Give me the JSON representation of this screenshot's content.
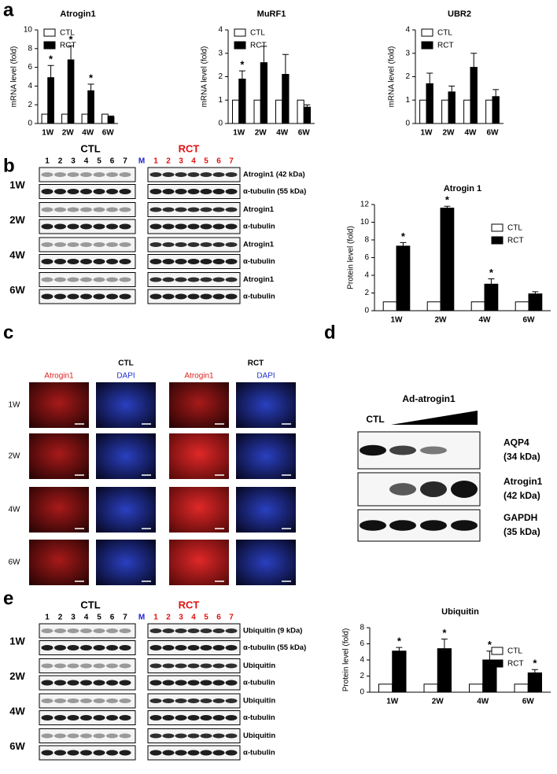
{
  "panel_labels": [
    "a",
    "b",
    "c",
    "d",
    "e"
  ],
  "chart_data": [
    {
      "type": "bar",
      "title": "Atrogin1",
      "ylabel": "mRNA level (fold)",
      "categories": [
        "1W",
        "2W",
        "4W",
        "6W"
      ],
      "ylim": [
        0,
        10
      ],
      "yticks": [
        0,
        2,
        4,
        6,
        8,
        10
      ],
      "legend": "upper-left",
      "series": [
        {
          "name": "CTL",
          "color": "#ffffff",
          "values": [
            1,
            1,
            1,
            1
          ]
        },
        {
          "name": "RCT",
          "color": "#000000",
          "values": [
            4.9,
            6.8,
            3.5,
            0.7
          ],
          "errors": [
            1.3,
            1.5,
            0.7,
            0.1
          ],
          "annotations": [
            "*",
            "*",
            "*",
            null
          ]
        }
      ]
    },
    {
      "type": "bar",
      "title": "MuRF1",
      "ylabel": "mRNA level (fold)",
      "categories": [
        "1W",
        "2W",
        "4W",
        "6W"
      ],
      "ylim": [
        0,
        4
      ],
      "yticks": [
        0,
        1,
        2,
        3,
        4
      ],
      "legend": "upper-left",
      "series": [
        {
          "name": "CTL",
          "color": "#ffffff",
          "values": [
            1,
            1,
            1,
            1
          ]
        },
        {
          "name": "RCT",
          "color": "#000000",
          "values": [
            1.9,
            2.6,
            2.1,
            0.7
          ],
          "errors": [
            0.35,
            0.7,
            0.85,
            0.1
          ],
          "annotations": [
            "*",
            null,
            null,
            null
          ]
        }
      ]
    },
    {
      "type": "bar",
      "title": "UBR2",
      "ylabel": "mRNA level (fold)",
      "categories": [
        "1W",
        "2W",
        "4W",
        "6W"
      ],
      "ylim": [
        0,
        4
      ],
      "yticks": [
        0,
        1,
        2,
        3,
        4
      ],
      "legend": "upper-left",
      "series": [
        {
          "name": "CTL",
          "color": "#ffffff",
          "values": [
            1,
            1,
            1,
            1
          ]
        },
        {
          "name": "RCT",
          "color": "#000000",
          "values": [
            1.7,
            1.35,
            2.4,
            1.15
          ],
          "errors": [
            0.45,
            0.25,
            0.6,
            0.3
          ]
        }
      ]
    },
    {
      "type": "bar",
      "title": "Atrogin 1",
      "ylabel": "Protein level (fold)",
      "categories": [
        "1W",
        "2W",
        "4W",
        "6W"
      ],
      "ylim": [
        0,
        12
      ],
      "yticks": [
        0,
        2,
        4,
        6,
        8,
        10,
        12
      ],
      "legend": "upper-right",
      "series": [
        {
          "name": "CTL",
          "color": "#ffffff",
          "values": [
            1,
            1,
            1,
            1
          ]
        },
        {
          "name": "RCT",
          "color": "#000000",
          "values": [
            7.3,
            11.6,
            3.0,
            1.9
          ],
          "errors": [
            0.4,
            0.2,
            0.6,
            0.25
          ],
          "annotations": [
            "*",
            "*",
            "*",
            null
          ]
        }
      ]
    },
    {
      "type": "bar",
      "title": "Ubiquitin",
      "ylabel": "Protein level (fold)",
      "categories": [
        "1W",
        "2W",
        "4W",
        "6W"
      ],
      "ylim": [
        0,
        8
      ],
      "yticks": [
        0,
        2,
        4,
        6,
        8
      ],
      "legend": "upper-right",
      "series": [
        {
          "name": "CTL",
          "color": "#ffffff",
          "values": [
            1,
            1,
            1,
            1
          ]
        },
        {
          "name": "RCT",
          "color": "#000000",
          "values": [
            5.1,
            5.4,
            4.0,
            2.4
          ],
          "errors": [
            0.45,
            1.2,
            1.1,
            0.4
          ],
          "annotations": [
            "*",
            "*",
            "*",
            "*"
          ]
        }
      ]
    }
  ],
  "blot_b": {
    "group_labels": [
      "CTL",
      "RCT"
    ],
    "lanes": [
      "1",
      "2",
      "3",
      "4",
      "5",
      "6",
      "7",
      "M",
      "1",
      "2",
      "3",
      "4",
      "5",
      "6",
      "7"
    ],
    "rows": [
      "1W",
      "2W",
      "4W",
      "6W"
    ],
    "bands": [
      [
        "Atrogin1 (42 kDa)",
        "α-tubulin (55 kDa)"
      ],
      [
        "Atrogin1",
        "α-tubulin"
      ],
      [
        "Atrogin1",
        "α-tubulin"
      ],
      [
        "Atrogin1",
        "α-tubulin"
      ]
    ]
  },
  "microscopy": {
    "group_labels": [
      "CTL",
      "RCT"
    ],
    "columns": [
      "Atrogin1",
      "DAPI",
      "Atrogin1",
      "DAPI"
    ],
    "rows": [
      "1W",
      "2W",
      "4W",
      "6W"
    ]
  },
  "blot_d": {
    "lane_label": "CTL",
    "group_label": "Ad-atrogin1",
    "bands": [
      [
        "AQP4",
        "(34 kDa)"
      ],
      [
        "Atrogin1",
        "(42 kDa)"
      ],
      [
        "GAPDH",
        "(35 kDa)"
      ]
    ]
  },
  "blot_e": {
    "group_labels": [
      "CTL",
      "RCT"
    ],
    "lanes": [
      "1",
      "2",
      "3",
      "4",
      "5",
      "6",
      "7",
      "M",
      "1",
      "2",
      "3",
      "4",
      "5",
      "6",
      "7"
    ],
    "rows": [
      "1W",
      "2W",
      "4W",
      "6W"
    ],
    "bands": [
      [
        "Ubiquitin (9 kDa)",
        "α-tubulin (55 kDa)"
      ],
      [
        "Ubiquitin",
        "α-tubulin"
      ],
      [
        "Ubiquitin",
        "α-tubulin"
      ],
      [
        "Ubiquitin",
        "α-tubulin"
      ]
    ]
  }
}
